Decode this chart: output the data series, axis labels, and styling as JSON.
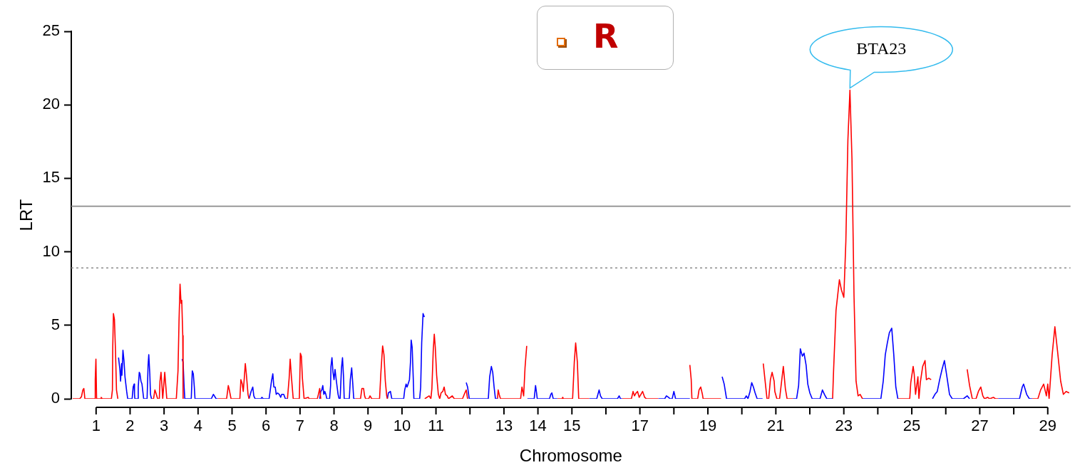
{
  "chart_data": {
    "type": "line",
    "xlabel": "Chromosome",
    "ylabel": "LRT",
    "xlim": [
      0.27,
      29.67
    ],
    "ylim": [
      0,
      25
    ],
    "yticks": [
      0,
      5,
      10,
      15,
      20,
      25
    ],
    "xticks": [
      1,
      2,
      3,
      4,
      5,
      6,
      7,
      8,
      9,
      10,
      11,
      {
        "value": 12,
        "label": null
      },
      13,
      14,
      15,
      {
        "value": 16,
        "label": null
      },
      17,
      {
        "value": 18,
        "label": null
      },
      19,
      {
        "value": 20,
        "label": null
      },
      21,
      {
        "value": 22,
        "label": null
      },
      23,
      {
        "value": 24,
        "label": null
      },
      25,
      {
        "value": 26,
        "label": null
      },
      27,
      {
        "value": 28,
        "label": null
      },
      29
    ],
    "grid": false,
    "legend": false,
    "marker": "none",
    "line_style": "solid",
    "ref_lines": [
      {
        "axis": "y",
        "value": 13.1,
        "color": "#8c8c8c",
        "line_style": "solid"
      },
      {
        "axis": "y",
        "value": 8.9,
        "color": "#8c8c8c",
        "line_style": "dotted"
      }
    ],
    "annotations": [
      {
        "text": "BTA23",
        "x": 23.18,
        "y": 21.0
      },
      "R"
    ],
    "series": [
      {
        "color": "#ff0000",
        "x": [
          0.31,
          0.52,
          0.57,
          0.61,
          0.64,
          0.67,
          0.97,
          0.975,
          0.995,
          1.015,
          1.13,
          1.15,
          1.18,
          1.45,
          1.48,
          1.49,
          1.51,
          1.54,
          1.57,
          1.6,
          1.64
        ],
        "values": [
          0,
          0,
          0.15,
          0.6,
          0.7,
          0,
          0,
          1.3,
          2.7,
          0,
          0,
          0.1,
          0,
          0,
          0.6,
          3.5,
          5.8,
          5.4,
          3.3,
          0.6,
          0
        ]
      },
      {
        "color": "#0000ff",
        "x": [
          1.66,
          1.7,
          1.72,
          1.75,
          1.76,
          1.79,
          1.82,
          1.85,
          1.9,
          1.93,
          2.06,
          2.09,
          2.12,
          2.13,
          2.14,
          2.23,
          2.24,
          2.27,
          2.29,
          2.32,
          2.35,
          2.37,
          2.4,
          2.5,
          2.53,
          2.55,
          2.58,
          2.6,
          2.63
        ],
        "values": [
          2.8,
          2.0,
          1.2,
          2.4,
          1.6,
          3.3,
          2.6,
          1.5,
          0.5,
          0,
          0,
          0.8,
          1.0,
          0.3,
          0,
          0,
          0.8,
          1.8,
          1.7,
          1.2,
          1.0,
          0.6,
          0,
          0,
          2.3,
          3.0,
          1.7,
          0.3,
          0
        ]
      },
      {
        "color": "#ff0000",
        "x": [
          2.63,
          2.69,
          2.73,
          2.76,
          2.81,
          2.86,
          2.88,
          2.91,
          2.94,
          2.96,
          2.99,
          3.02,
          3.05,
          3.08,
          3.36,
          3.41,
          3.44,
          3.47,
          3.5,
          3.52,
          3.55,
          3.56
        ],
        "values": [
          0,
          0,
          0.6,
          0.4,
          0,
          0,
          1.2,
          1.8,
          0.8,
          0,
          0.9,
          1.8,
          0.9,
          0,
          0,
          1.9,
          5.3,
          7.8,
          6.5,
          6.7,
          4.3,
          0
        ]
      },
      {
        "color": "#0000ff",
        "x": [
          3.53,
          3.56,
          3.59,
          3.61,
          3.8,
          3.83,
          3.86,
          3.89,
          3.91,
          4.39,
          4.45,
          4.48,
          4.53,
          4.58
        ],
        "values": [
          2.7,
          2.5,
          0.8,
          0,
          0,
          1.9,
          1.7,
          0.8,
          0,
          0,
          0.3,
          0.2,
          0,
          0
        ]
      },
      {
        "color": "#ff0000",
        "x": [
          4.58,
          4.84,
          4.89,
          4.92,
          4.97,
          5.23,
          5.26,
          5.3,
          5.33,
          5.36,
          5.39,
          5.42,
          5.47,
          5.5
        ],
        "values": [
          0,
          0,
          0.9,
          0.6,
          0,
          0,
          1.3,
          1.0,
          0.5,
          1.4,
          2.4,
          1.7,
          0.3,
          0
        ]
      },
      {
        "color": "#0000ff",
        "x": [
          5.5,
          5.56,
          5.61,
          5.64,
          5.68,
          5.85,
          5.88,
          5.92,
          6.09,
          6.16,
          6.2,
          6.23,
          6.27,
          6.3,
          6.34,
          6.39,
          6.43,
          6.46,
          6.52,
          6.57,
          6.63
        ],
        "values": [
          0,
          0.5,
          0.8,
          0.2,
          0,
          0,
          0.1,
          0,
          0,
          1.2,
          1.7,
          0.8,
          0.8,
          0.3,
          0.4,
          0.3,
          0.1,
          0.3,
          0.3,
          0,
          0
        ]
      },
      {
        "color": "#ff0000",
        "x": [
          6.63,
          6.68,
          6.71,
          6.75,
          6.8,
          6.98,
          7.01,
          7.04,
          7.07,
          7.12,
          7.24,
          7.27,
          7.51,
          7.54,
          7.58,
          7.61
        ],
        "values": [
          0,
          1.4,
          2.7,
          1.4,
          0,
          0,
          3.1,
          2.9,
          1.4,
          0,
          0.1,
          0,
          0,
          0.3,
          0.7,
          0
        ]
      },
      {
        "color": "#0000ff",
        "x": [
          7.58,
          7.61,
          7.64,
          7.67,
          7.7,
          7.73,
          7.76,
          7.79,
          7.87,
          7.9,
          7.91,
          7.94,
          7.97,
          8.0,
          8.03,
          8.07,
          8.12,
          8.15,
          8.18,
          8.22,
          8.25,
          8.28,
          8.3,
          8.45,
          8.48,
          8.52,
          8.55,
          8.58,
          8.63
        ],
        "values": [
          0,
          0.5,
          0.6,
          0.9,
          0.3,
          0.5,
          0.3,
          0,
          0,
          0.9,
          2.2,
          2.8,
          1.8,
          1.3,
          2.0,
          1.2,
          0.3,
          0,
          0,
          2.1,
          2.8,
          1.5,
          0,
          0,
          1.3,
          2.1,
          1.1,
          0,
          0
        ]
      },
      {
        "color": "#ff0000",
        "x": [
          8.63,
          8.78,
          8.82,
          8.87,
          8.9,
          8.93,
          9.02,
          9.06,
          9.11,
          9.34,
          9.38,
          9.43,
          9.47,
          9.51,
          9.55,
          9.57
        ],
        "values": [
          0,
          0,
          0.7,
          0.7,
          0.2,
          0,
          0,
          0.2,
          0,
          0,
          1.8,
          3.6,
          3.0,
          1.2,
          0.2,
          0
        ]
      },
      {
        "color": "#0000ff",
        "x": [
          9.57,
          9.6,
          9.66,
          9.7,
          10.05,
          10.08,
          10.12,
          10.15,
          10.18,
          10.22,
          10.25,
          10.27,
          10.3,
          10.33,
          10.35,
          10.52,
          10.55,
          10.58,
          10.62,
          10.65,
          10.67
        ],
        "values": [
          0,
          0.4,
          0.5,
          0,
          0,
          0.6,
          1.0,
          0.8,
          1.0,
          1.3,
          2.5,
          4.0,
          3.5,
          1.5,
          0,
          0,
          0.8,
          3.8,
          5.8,
          5.6,
          5.6
        ]
      },
      {
        "color": "#ff0000",
        "x": [
          10.67,
          10.8,
          10.85,
          10.88,
          10.92,
          10.95,
          10.98,
          11.02,
          11.07,
          11.11,
          11.15,
          11.2,
          11.24,
          11.28,
          11.33,
          11.37,
          11.48,
          11.54,
          11.78,
          11.85,
          11.89,
          11.93
        ],
        "values": [
          0,
          0.2,
          0,
          0.7,
          3.3,
          4.4,
          3.5,
          1.6,
          0.3,
          0,
          0.4,
          0.5,
          0.8,
          0.3,
          0.2,
          0,
          0.2,
          0,
          0,
          0.4,
          0.6,
          0
        ]
      },
      {
        "color": "#0000ff",
        "x": [
          11.89,
          11.93,
          11.98,
          12.54,
          12.58,
          12.63,
          12.67,
          12.71,
          12.75,
          12.81
        ],
        "values": [
          1.1,
          0.8,
          0,
          0,
          1.5,
          2.2,
          1.8,
          0.8,
          0,
          0
        ]
      },
      {
        "color": "#ff0000",
        "x": [
          12.81,
          12.83,
          12.87,
          12.9,
          13.49,
          13.53,
          13.58,
          13.62,
          13.67
        ],
        "values": [
          0,
          0.6,
          0.2,
          0,
          0,
          0.8,
          0.2,
          2.1,
          3.6
        ]
      },
      {
        "color": "#0000ff",
        "x": [
          13.69,
          13.89,
          13.93,
          13.96,
          13.98,
          14.34,
          14.38,
          14.41,
          14.45,
          14.57
        ],
        "values": [
          0,
          0,
          0.9,
          0.4,
          0,
          0,
          0.3,
          0.4,
          0,
          0
        ]
      },
      {
        "color": "#ff0000",
        "x": [
          14.57,
          14.71,
          14.73,
          14.75,
          15.02,
          15.07,
          15.11,
          15.16,
          15.2,
          15.51
        ],
        "values": [
          0,
          0,
          0.1,
          0,
          0,
          2.5,
          3.8,
          2.5,
          0,
          0
        ]
      },
      {
        "color": "#0000ff",
        "x": [
          15.51,
          15.73,
          15.8,
          15.84,
          15.89,
          16.34,
          16.39,
          16.43,
          16.48
        ],
        "values": [
          0,
          0,
          0.6,
          0.2,
          0,
          0,
          0.2,
          0,
          0
        ]
      },
      {
        "color": "#ff0000",
        "x": [
          16.48,
          16.75,
          16.8,
          16.84,
          16.89,
          16.93,
          16.98,
          17.03,
          17.08,
          17.14,
          17.19,
          17.54
        ],
        "values": [
          0,
          0,
          0.5,
          0.2,
          0.4,
          0.5,
          0.1,
          0.3,
          0.5,
          0.1,
          0,
          0
        ]
      },
      {
        "color": "#0000ff",
        "x": [
          17.54,
          17.73,
          17.78,
          17.84,
          17.89,
          17.95,
          18.0,
          18.05,
          18.47
        ],
        "values": [
          0,
          0,
          0.2,
          0.1,
          0,
          0,
          0.5,
          0,
          0
        ]
      },
      {
        "color": "#ff0000",
        "x": [
          18.47,
          18.51,
          18.53,
          18.7,
          18.74,
          18.79,
          18.84,
          18.86,
          19.39
        ],
        "values": [
          2.3,
          1.3,
          0,
          0,
          0.6,
          0.8,
          0.3,
          0,
          0
        ]
      },
      {
        "color": "#0000ff",
        "x": [
          19.42,
          19.48,
          19.55,
          20.08,
          20.13,
          20.18,
          20.24,
          20.29,
          20.34,
          20.39,
          20.45,
          20.61
        ],
        "values": [
          1.5,
          1.0,
          0,
          0,
          0.2,
          0,
          0.5,
          1.1,
          0.8,
          0.4,
          0,
          0
        ]
      },
      {
        "color": "#ff0000",
        "x": [
          20.63,
          20.68,
          20.74,
          20.79,
          20.84,
          20.89,
          20.95,
          20.97,
          21.03,
          21.11,
          21.17,
          21.22,
          21.28,
          21.33,
          21.5
        ],
        "values": [
          2.4,
          1.3,
          0,
          0,
          1.3,
          1.8,
          1.2,
          0.5,
          0,
          0,
          1.2,
          2.2,
          0.7,
          0,
          0
        ]
      },
      {
        "color": "#0000ff",
        "x": [
          21.5,
          21.61,
          21.67,
          21.72,
          21.78,
          21.83,
          21.89,
          21.94,
          22.0,
          22.07,
          22.3,
          22.37,
          22.43,
          22.5,
          22.67
        ],
        "values": [
          0,
          0,
          0.9,
          3.4,
          2.9,
          3.1,
          2.3,
          1.0,
          0.4,
          0,
          0,
          0.6,
          0.3,
          0,
          0
        ]
      },
      {
        "color": "#ff0000",
        "x": [
          22.67,
          22.7,
          22.77,
          22.87,
          22.93,
          23.0,
          23.06,
          23.12,
          23.18,
          23.24,
          23.3,
          23.36,
          23.42,
          23.48,
          23.55
        ],
        "values": [
          0,
          2.0,
          6.0,
          8.1,
          7.4,
          6.9,
          10.7,
          17.6,
          21.0,
          16.3,
          7.0,
          1.2,
          0.2,
          0.3,
          0
        ]
      },
      {
        "color": "#0000ff",
        "x": [
          23.55,
          24.09,
          24.16,
          24.22,
          24.28,
          24.34,
          24.41,
          24.47,
          24.53,
          24.59
        ],
        "values": [
          0,
          0,
          1.2,
          3.0,
          3.8,
          4.5,
          4.8,
          3.0,
          0.8,
          0
        ]
      },
      {
        "color": "#ff0000",
        "x": [
          24.59,
          24.94,
          24.97,
          25.04,
          25.07,
          25.11,
          25.18,
          25.21,
          25.25,
          25.32,
          25.39,
          25.43,
          25.5,
          25.57
        ],
        "values": [
          0,
          0,
          1.1,
          2.2,
          1.7,
          0.3,
          1.5,
          0,
          1.1,
          2.2,
          2.6,
          1.3,
          1.4,
          1.3
        ]
      },
      {
        "color": "#0000ff",
        "x": [
          25.61,
          25.68,
          25.75,
          25.82,
          25.89,
          25.96,
          26.04,
          26.11,
          26.19,
          26.52,
          26.63,
          26.7
        ],
        "values": [
          0,
          0.3,
          0.5,
          1.3,
          2.0,
          2.6,
          1.4,
          0.3,
          0,
          0,
          0.2,
          0
        ]
      },
      {
        "color": "#ff0000",
        "x": [
          26.63,
          26.7,
          26.78,
          26.89,
          26.96,
          27.03,
          27.09,
          27.14,
          27.23,
          27.29,
          27.4,
          27.46,
          27.54
        ],
        "values": [
          2.0,
          0.9,
          0,
          0,
          0.5,
          0.8,
          0.2,
          0,
          0.1,
          0,
          0.1,
          0,
          0
        ]
      },
      {
        "color": "#0000ff",
        "x": [
          27.54,
          28.17,
          28.25,
          28.29,
          28.38,
          28.46,
          28.54
        ],
        "values": [
          0,
          0,
          0.8,
          1.0,
          0.3,
          0,
          0
        ]
      },
      {
        "color": "#ff0000",
        "x": [
          28.54,
          28.71,
          28.79,
          28.88,
          28.96,
          29.0,
          29.04,
          29.13,
          29.21,
          29.29,
          29.38,
          29.46,
          29.54,
          29.63
        ],
        "values": [
          0,
          0,
          0.6,
          1.0,
          0.2,
          1.0,
          0,
          3.0,
          4.9,
          3.2,
          1.2,
          0.3,
          0.5,
          0.4
        ]
      }
    ]
  }
}
